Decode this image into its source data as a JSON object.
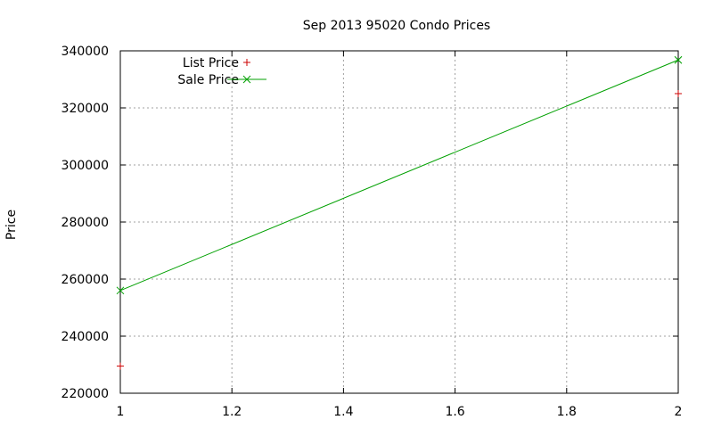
{
  "chart_data": {
    "type": "line",
    "title": "Sep 2013 95020 Condo Prices",
    "xlabel": "",
    "ylabel": "Price",
    "xlim": [
      1,
      2
    ],
    "ylim": [
      220000,
      340000
    ],
    "x_ticks": [
      "1",
      "1.2",
      "1.4",
      "1.6",
      "1.8",
      "2"
    ],
    "y_ticks": [
      "220000",
      "240000",
      "260000",
      "280000",
      "300000",
      "320000",
      "340000"
    ],
    "grid": true,
    "legend_position": "top-left",
    "series": [
      {
        "name": "List Price",
        "marker": "+",
        "color": "#cc0000",
        "line": false,
        "points": [
          {
            "x": 1,
            "y": 229500
          },
          {
            "x": 2,
            "y": 325000
          }
        ]
      },
      {
        "name": "Sale Price",
        "marker": "x",
        "color": "#00a000",
        "line": true,
        "points": [
          {
            "x": 1,
            "y": 256000
          },
          {
            "x": 2,
            "y": 336800
          }
        ]
      }
    ]
  }
}
